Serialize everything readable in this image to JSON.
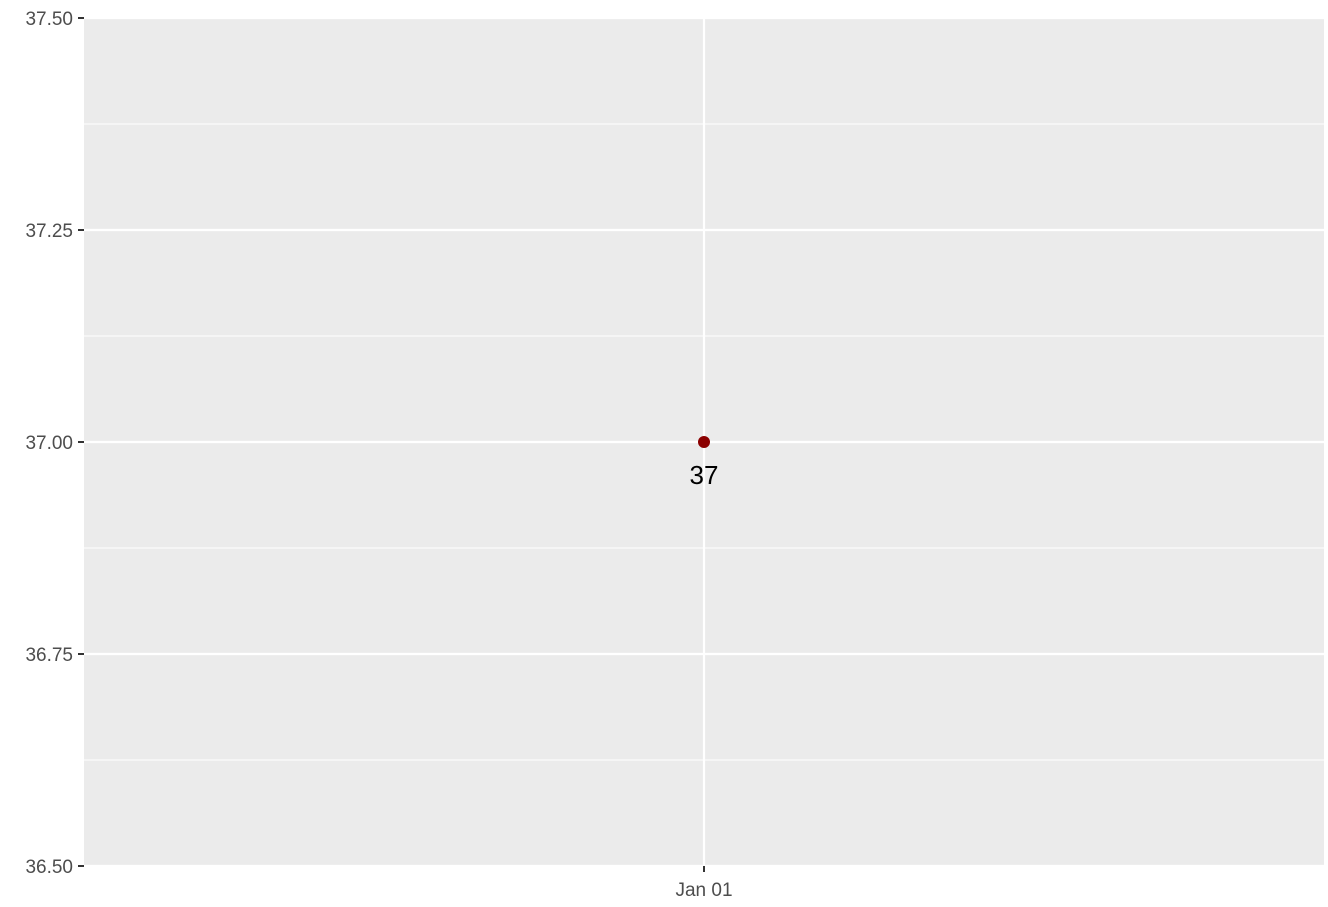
{
  "chart_data": {
    "type": "scatter",
    "title": "",
    "xlabel": "",
    "ylabel": "",
    "x_ticks": [
      "Jan 01"
    ],
    "y_ticks": [
      36.5,
      36.75,
      37.0,
      37.25,
      37.5
    ],
    "y_tick_labels": [
      "36.50",
      "36.75",
      "37.00",
      "37.25",
      "37.50"
    ],
    "ylim": [
      36.5,
      37.5
    ],
    "grid": true,
    "legend": "none",
    "series": [
      {
        "points": [
          {
            "x": "Jan 01",
            "y": 37,
            "label": "37"
          }
        ]
      }
    ],
    "colors": {
      "panel_background": "#ebebeb",
      "grid_major": "#ffffff",
      "grid_minor": "#ffffff",
      "point": "#8b0000",
      "axis_text": "#4d4d4d",
      "axis_ticks": "#333333"
    }
  }
}
